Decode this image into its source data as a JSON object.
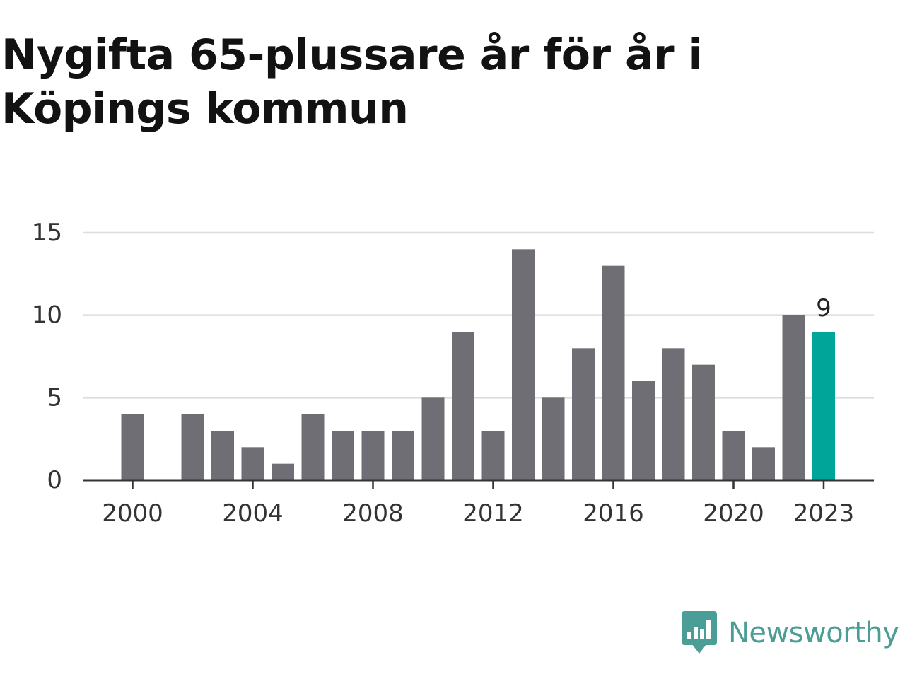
{
  "title": "Nygifta 65-plussare år för år i Köpings kommun",
  "brand": {
    "name": "Newsworthy",
    "icon": "newsworthy-logo-icon"
  },
  "colors": {
    "bar": "#6f6e74",
    "highlight": "#00a59a",
    "grid": "#dddddd",
    "axis": "#333333",
    "brand": "#4a9e96"
  },
  "chart_data": {
    "type": "bar",
    "title": "Nygifta 65-plussare år för år i Köpings kommun",
    "xlabel": "",
    "ylabel": "",
    "categories": [
      2000,
      2001,
      2002,
      2003,
      2004,
      2005,
      2006,
      2007,
      2008,
      2009,
      2010,
      2011,
      2012,
      2013,
      2014,
      2015,
      2016,
      2017,
      2018,
      2019,
      2020,
      2021,
      2022,
      2023
    ],
    "values": [
      4,
      0,
      4,
      3,
      2,
      1,
      4,
      3,
      3,
      3,
      5,
      9,
      3,
      14,
      5,
      8,
      13,
      6,
      8,
      7,
      3,
      2,
      10,
      9
    ],
    "ylim": [
      0,
      15
    ],
    "yticks": [
      0,
      5,
      10,
      15
    ],
    "xticks": [
      2000,
      2004,
      2008,
      2012,
      2016,
      2020,
      2023
    ],
    "highlight": {
      "category": 2023,
      "label": "9"
    },
    "grid": true,
    "legend": "none"
  }
}
